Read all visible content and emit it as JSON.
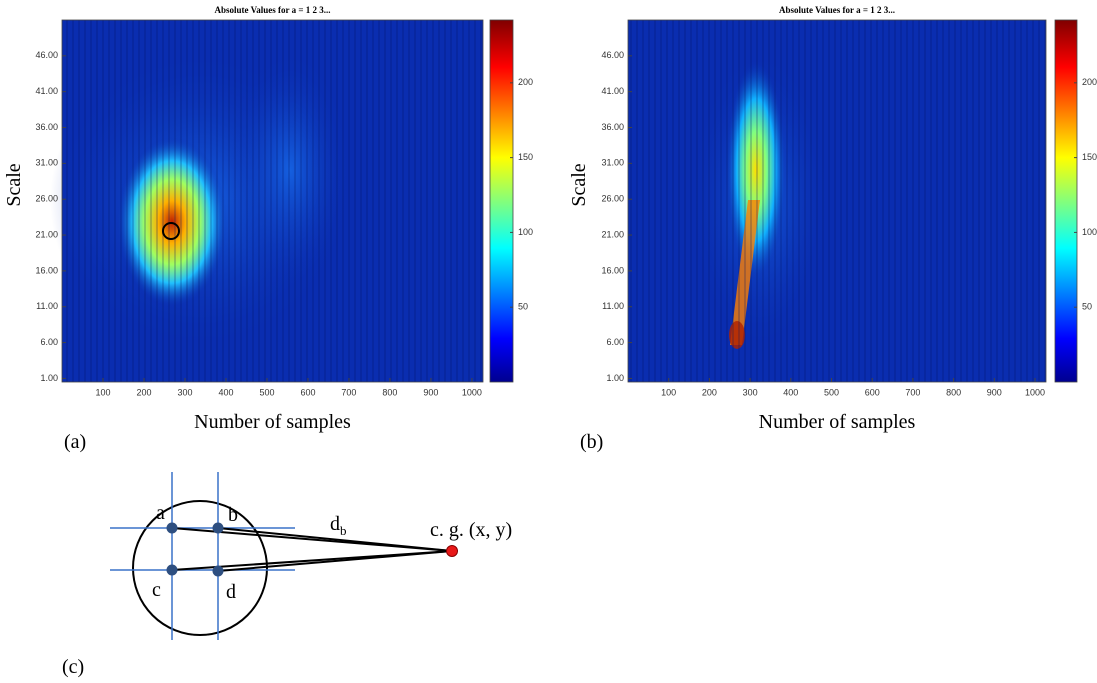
{
  "chart_data": [
    {
      "type": "heatmap",
      "panel_label": "(a)",
      "title": "Absolute Values for a =  1 2 3...",
      "x_label": "Number of samples",
      "y_label": "Scale",
      "xlim": [
        0,
        1027
      ],
      "xticks": [
        100,
        200,
        300,
        400,
        500,
        600,
        700,
        800,
        900,
        1000
      ],
      "ylim": [
        0.5,
        51
      ],
      "yticks": [
        {
          "value": 1,
          "label": "1.00"
        },
        {
          "value": 6,
          "label": "6.00"
        },
        {
          "value": 11,
          "label": "11.00"
        },
        {
          "value": 16,
          "label": "16.00"
        },
        {
          "value": 21,
          "label": "21.00"
        },
        {
          "value": 26,
          "label": "26.00"
        },
        {
          "value": 31,
          "label": "31.00"
        },
        {
          "value": 36,
          "label": "36.00"
        },
        {
          "value": 41,
          "label": "41.00"
        },
        {
          "value": 46,
          "label": "46.00"
        }
      ],
      "clim": [
        0,
        242
      ],
      "colorbar_ticks": [
        50,
        100,
        150,
        200
      ]
    },
    {
      "type": "heatmap",
      "panel_label": "(b)",
      "title": "Absolute Values for a =  1 2 3...",
      "x_label": "Number of samples",
      "y_label": "Scale",
      "xlim": [
        0,
        1027
      ],
      "xticks": [
        100,
        200,
        300,
        400,
        500,
        600,
        700,
        800,
        900,
        1000
      ],
      "ylim": [
        0.5,
        51
      ],
      "yticks": [
        {
          "value": 1,
          "label": "1.00"
        },
        {
          "value": 6,
          "label": "6.00"
        },
        {
          "value": 11,
          "label": "11.00"
        },
        {
          "value": 16,
          "label": "16.00"
        },
        {
          "value": 21,
          "label": "21.00"
        },
        {
          "value": 26,
          "label": "26.00"
        },
        {
          "value": 31,
          "label": "31.00"
        },
        {
          "value": 36,
          "label": "36.00"
        },
        {
          "value": 41,
          "label": "41.00"
        },
        {
          "value": 46,
          "label": "46.00"
        }
      ],
      "clim": [
        0,
        242
      ],
      "colorbar_ticks": [
        50,
        100,
        150,
        200
      ]
    }
  ],
  "diagram": {
    "panel_label": "(c)",
    "points": [
      "a",
      "b",
      "c",
      "d"
    ],
    "edge_label": "d",
    "edge_label_subscript": "b",
    "target_label": "c. g. (x, y)"
  }
}
